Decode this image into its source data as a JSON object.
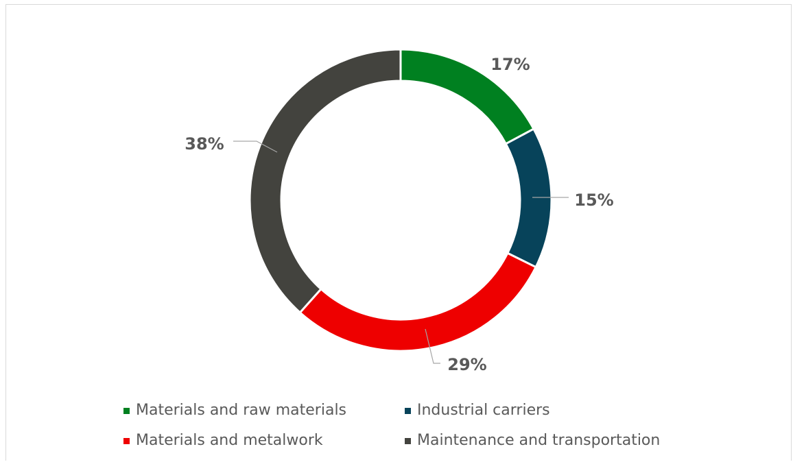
{
  "chart_data": {
    "type": "pie",
    "variant": "donut",
    "categories": [
      "Materials and raw materials",
      "Industrial carriers",
      "Materials and metalwork",
      "Maintenance and transportation"
    ],
    "values": [
      17,
      15,
      29,
      38
    ],
    "value_labels": [
      "17%",
      "15%",
      "29%",
      "38%"
    ],
    "unit": "%",
    "colors": [
      "#008020",
      "#07435a",
      "#ee0000",
      "#43433e"
    ],
    "title": "",
    "legend_position": "bottom",
    "start_angle": "12 o'clock",
    "direction": "clockwise"
  }
}
